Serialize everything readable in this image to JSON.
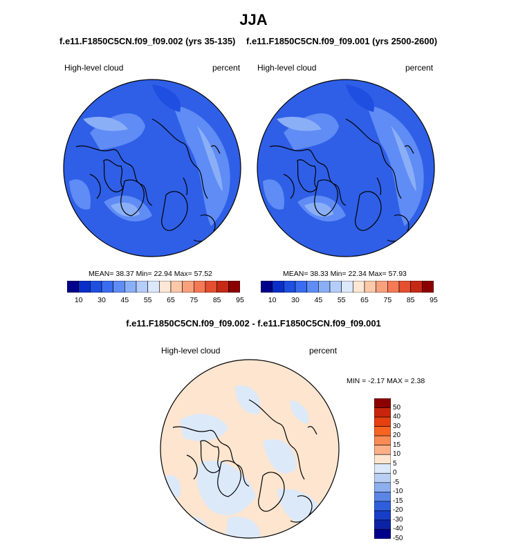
{
  "figure": {
    "title": "JJA",
    "left_case_title": "f.e11.F1850C5CN.f09_f09.002 (yrs 35-135)",
    "right_case_title": "f.e11.F1850C5CN.f09_f09.001 (yrs 2500-2600)",
    "diff_title": "f.e11.F1850C5CN.f09_f09.002 - f.e11.F1850C5CN.f09_f09.001"
  },
  "panels": {
    "left": {
      "variable": "High-level cloud",
      "units": "percent",
      "stats": "MEAN=  38.37  Min=  22.94  Max=  57.52"
    },
    "right": {
      "variable": "High-level cloud",
      "units": "percent",
      "stats": "MEAN=  38.33  Min=  22.34  Max=  57.93"
    },
    "diff": {
      "variable": "High-level cloud",
      "units": "percent",
      "stats": "MIN =  -2.17 MAX =   2.38"
    }
  },
  "colorbars": {
    "abs_ticks": [
      "10",
      "30",
      "45",
      "55",
      "65",
      "75",
      "85",
      "95"
    ],
    "abs_colors": [
      "#00008b",
      "#0a2ec8",
      "#1e4fe0",
      "#3a6cf0",
      "#5f8cf5",
      "#8aaff7",
      "#b5cdfa",
      "#dce8fd",
      "#fde7d6",
      "#fcc8a8",
      "#f9a07c",
      "#f47a55",
      "#e44f30",
      "#c62a14",
      "#8b0000"
    ],
    "diff_ticks": [
      "50",
      "40",
      "30",
      "20",
      "15",
      "10",
      "5",
      "0",
      "-5",
      "-10",
      "-15",
      "-20",
      "-30",
      "-40",
      "-50"
    ],
    "diff_colors": [
      "#8b0000",
      "#c8250c",
      "#e64010",
      "#f76422",
      "#f98b55",
      "#fbb088",
      "#fde5cf",
      "#dce9f9",
      "#b9cff4",
      "#8dafee",
      "#5c86e6",
      "#2f5fdc",
      "#173ec8",
      "#0c22a6",
      "#00008b"
    ]
  },
  "chart_data": [
    {
      "type": "heatmap",
      "projection": "north-polar-stereographic",
      "title": "f.e11.F1850C5CN.f09_f09.002 (yrs 35-135)",
      "variable": "High-level cloud",
      "units": "percent",
      "mean": 38.37,
      "min": 22.94,
      "max": 57.52,
      "levels": [
        10,
        30,
        45,
        55,
        65,
        75,
        85,
        95
      ],
      "dominant_color": "#3a6cf0"
    },
    {
      "type": "heatmap",
      "projection": "north-polar-stereographic",
      "title": "f.e11.F1850C5CN.f09_f09.001 (yrs 2500-2600)",
      "variable": "High-level cloud",
      "units": "percent",
      "mean": 38.33,
      "min": 22.34,
      "max": 57.93,
      "levels": [
        10,
        30,
        45,
        55,
        65,
        75,
        85,
        95
      ],
      "dominant_color": "#3a6cf0"
    },
    {
      "type": "heatmap",
      "projection": "north-polar-stereographic",
      "title": "f.e11.F1850C5CN.f09_f09.002 - f.e11.F1850C5CN.f09_f09.001",
      "variable": "High-level cloud",
      "units": "percent",
      "min": -2.17,
      "max": 2.38,
      "levels": [
        -50,
        -40,
        -30,
        -20,
        -15,
        -10,
        -5,
        0,
        5,
        10,
        15,
        20,
        30,
        40,
        50
      ],
      "dominant_colors": [
        "#fde5cf",
        "#dce9f9"
      ]
    }
  ]
}
